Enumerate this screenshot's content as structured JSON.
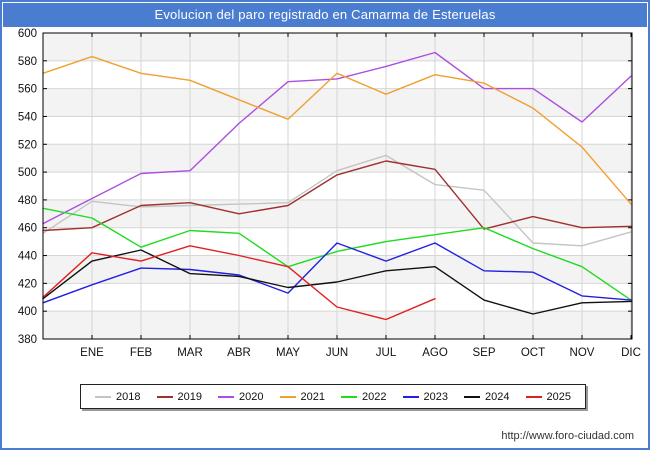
{
  "window": {
    "title": "Evolucion del paro registrado en Camarma de Esteruelas"
  },
  "footer": {
    "url": "http://www.foro-ciudad.com"
  },
  "colors": {
    "frame_blue": "#4a7cd0",
    "titlebar_text": "#ffffff",
    "grid_line": "#d6d6d6",
    "band_gray": "#f3f3f3",
    "plot_border": "#000000",
    "tick_text": "#111111"
  },
  "chart_data": {
    "type": "line",
    "title": "Evolucion del paro registrado en Camarma de Esteruelas",
    "xlabel": "",
    "ylabel": "",
    "ylim": [
      380,
      600
    ],
    "y_ticks": [
      600,
      580,
      560,
      540,
      520,
      500,
      480,
      460,
      440,
      420,
      400,
      380
    ],
    "x_tick_labels": [
      "ENE",
      "FEB",
      "MAR",
      "ABR",
      "MAY",
      "JUN",
      "JUL",
      "AGO",
      "SEP",
      "OCT",
      "NOV",
      "DIC"
    ],
    "grid": true,
    "legend_position": "bottom",
    "note": "Each series has a leading start value plotted at the left plot border (previous December) followed by 12 monthly values ENE-DIC; 2025 ends at AGO.",
    "series": [
      {
        "name": "2018",
        "color": "#c4c4c4",
        "values": [
          456,
          479,
          475,
          476,
          477,
          478,
          501,
          512,
          491,
          487,
          449,
          447,
          457
        ]
      },
      {
        "name": "2019",
        "color": "#a03030",
        "values": [
          458,
          460,
          476,
          478,
          470,
          476,
          498,
          508,
          502,
          459,
          468,
          460,
          461
        ]
      },
      {
        "name": "2020",
        "color": "#ab4fe0",
        "values": [
          463,
          481,
          499,
          501,
          535,
          565,
          567,
          576,
          586,
          560,
          560,
          536,
          569
        ]
      },
      {
        "name": "2021",
        "color": "#f0a030",
        "values": [
          571,
          583,
          571,
          566,
          552,
          538,
          571,
          556,
          570,
          564,
          546,
          518,
          477
        ]
      },
      {
        "name": "2022",
        "color": "#1edc1e",
        "values": [
          474,
          467,
          446,
          458,
          456,
          432,
          443,
          450,
          455,
          460,
          445,
          432,
          408
        ]
      },
      {
        "name": "2023",
        "color": "#2020e0",
        "values": [
          406,
          419,
          431,
          430,
          426,
          413,
          449,
          436,
          449,
          429,
          428,
          411,
          408
        ]
      },
      {
        "name": "2024",
        "color": "#111111",
        "values": [
          409,
          436,
          444,
          427,
          425,
          417,
          421,
          429,
          432,
          408,
          398,
          406,
          407
        ]
      },
      {
        "name": "2025",
        "color": "#e02020",
        "values": [
          410,
          442,
          436,
          447,
          440,
          432,
          403,
          394,
          409
        ]
      }
    ]
  }
}
